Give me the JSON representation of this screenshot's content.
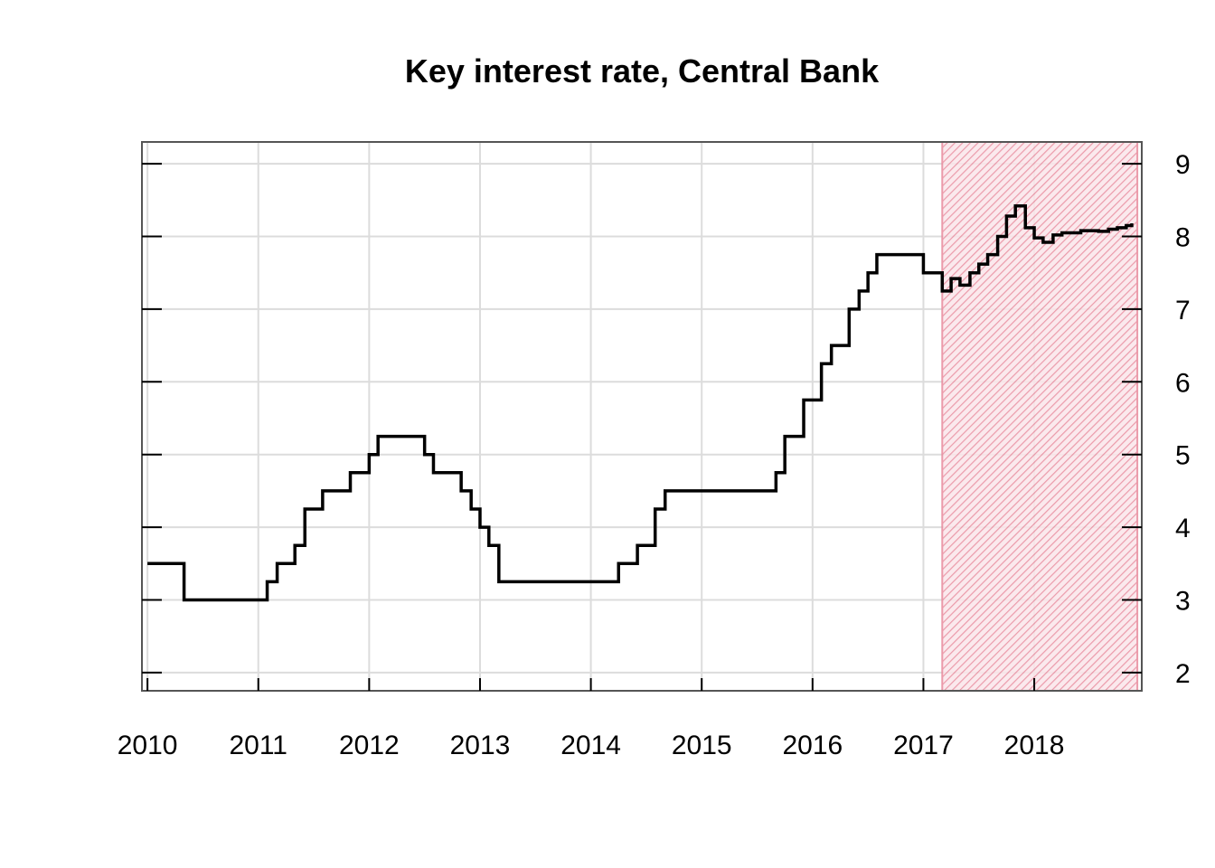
{
  "chart_data": {
    "type": "line",
    "title": "Key interest rate, Central Bank",
    "xlabel": "",
    "ylabel": "",
    "xlim": [
      2009.95,
      2018.97
    ],
    "ylim": [
      1.75,
      9.3
    ],
    "x_ticks": [
      2010,
      2011,
      2012,
      2013,
      2014,
      2015,
      2016,
      2017,
      2018
    ],
    "x_tick_labels": [
      "2010",
      "2011",
      "2012",
      "2013",
      "2014",
      "2015",
      "2016",
      "2017",
      "2018"
    ],
    "y_ticks": [
      2,
      3,
      4,
      5,
      6,
      7,
      8,
      9
    ],
    "y_tick_labels": [
      "2",
      "3",
      "4",
      "5",
      "6",
      "7",
      "8",
      "9"
    ],
    "y_axis_position": "right",
    "grid": true,
    "shaded_region": {
      "x_start": 2017.17,
      "x_end": 2018.93,
      "color": "#e8899c",
      "pattern": "diagonal-hatch"
    },
    "series": [
      {
        "step": true,
        "color": "#000000",
        "x": [
          2010.0,
          2010.33,
          2011.08,
          2011.17,
          2011.33,
          2011.42,
          2011.58,
          2011.83,
          2012.0,
          2012.08,
          2012.5,
          2012.58,
          2012.83,
          2012.92,
          2013.0,
          2013.08,
          2013.17,
          2014.25,
          2014.42,
          2014.58,
          2014.67,
          2015.67,
          2015.75,
          2015.92,
          2016.08,
          2016.17,
          2016.33,
          2016.42,
          2016.5,
          2016.58,
          2017.0,
          2017.17,
          2017.25,
          2017.33,
          2017.42,
          2017.5,
          2017.58,
          2017.67,
          2017.75,
          2017.83,
          2017.92,
          2018.0,
          2018.08,
          2018.17,
          2018.25,
          2018.42,
          2018.58,
          2018.67,
          2018.75,
          2018.83,
          2018.88
        ],
        "values": [
          3.5,
          3.0,
          3.25,
          3.5,
          3.75,
          4.25,
          4.5,
          4.75,
          5.0,
          5.25,
          5.0,
          4.75,
          4.5,
          4.25,
          4.0,
          3.75,
          3.25,
          3.5,
          3.75,
          4.25,
          4.5,
          4.75,
          5.25,
          5.75,
          6.25,
          6.5,
          7.0,
          7.25,
          7.5,
          7.75,
          7.5,
          7.25,
          7.42,
          7.33,
          7.5,
          7.62,
          7.75,
          8.0,
          8.28,
          8.42,
          8.12,
          7.98,
          7.92,
          8.02,
          8.05,
          8.08,
          8.07,
          8.1,
          8.12,
          8.15,
          8.18
        ]
      }
    ]
  }
}
